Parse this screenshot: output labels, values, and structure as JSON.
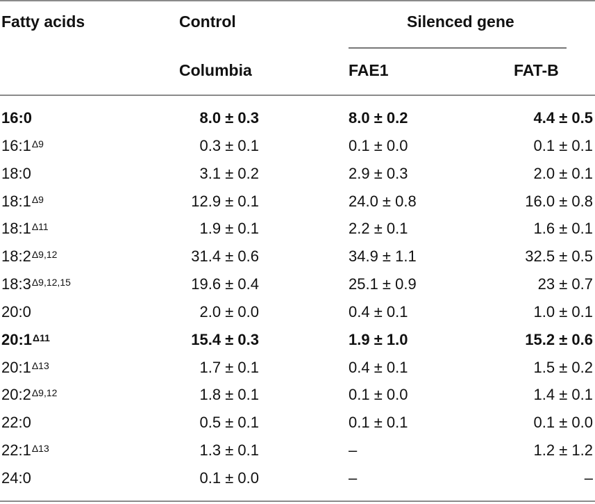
{
  "table": {
    "headers": {
      "fatty_acids": "Fatty acids",
      "control": "Control",
      "silenced": "Silenced gene",
      "columbia": "Columbia",
      "fae1": "FAE1",
      "fatb": "FAT-B"
    },
    "rows": [
      {
        "base": "16:0",
        "sup": "",
        "columbia": "8.0 ± 0.3",
        "fae1": "8.0 ± 0.2",
        "fatb": "4.4 ± 0.5",
        "bold": true
      },
      {
        "base": "16:1",
        "sup": "Δ9",
        "columbia": "0.3 ± 0.1",
        "fae1": "0.1 ± 0.0",
        "fatb": "0.1 ± 0.1",
        "bold": false
      },
      {
        "base": "18:0",
        "sup": "",
        "columbia": "3.1 ± 0.2",
        "fae1": "2.9 ± 0.3",
        "fatb": "2.0 ± 0.1",
        "bold": false
      },
      {
        "base": "18:1",
        "sup": "Δ9",
        "columbia": "12.9 ± 0.1",
        "fae1": "24.0 ± 0.8",
        "fatb": "16.0 ± 0.8",
        "bold": false
      },
      {
        "base": "18:1",
        "sup": "Δ11",
        "columbia": "1.9 ± 0.1",
        "fae1": "2.2 ± 0.1",
        "fatb": "1.6 ± 0.1",
        "bold": false
      },
      {
        "base": "18:2",
        "sup": "Δ9,12",
        "columbia": "31.4 ± 0.6",
        "fae1": "34.9 ± 1.1",
        "fatb": "32.5 ± 0.5",
        "bold": false
      },
      {
        "base": "18:3",
        "sup": "Δ9,12,15",
        "columbia": "19.6 ± 0.4",
        "fae1": "25.1 ± 0.9",
        "fatb": "23 ± 0.7",
        "bold": false
      },
      {
        "base": "20:0",
        "sup": "",
        "columbia": "2.0 ± 0.0",
        "fae1": "0.4 ± 0.1",
        "fatb": "1.0 ± 0.1",
        "bold": false
      },
      {
        "base": "20:1",
        "sup": "Δ11",
        "columbia": "15.4 ± 0.3",
        "fae1": "1.9 ± 1.0",
        "fatb": "15.2 ± 0.6",
        "bold": true
      },
      {
        "base": "20:1",
        "sup": "Δ13",
        "columbia": "1.7 ± 0.1",
        "fae1": "0.4 ± 0.1",
        "fatb": "1.5 ± 0.2",
        "bold": false
      },
      {
        "base": "20:2",
        "sup": "Δ9,12",
        "columbia": "1.8 ± 0.1",
        "fae1": "0.1 ± 0.0",
        "fatb": "1.4 ± 0.1",
        "bold": false
      },
      {
        "base": "22:0",
        "sup": "",
        "columbia": "0.5 ± 0.1",
        "fae1": "0.1 ± 0.1",
        "fatb": "0.1 ± 0.0",
        "bold": false
      },
      {
        "base": "22:1",
        "sup": "Δ13",
        "columbia": "1.3 ± 0.1",
        "fae1": "–",
        "fatb": "1.2 ± 1.2",
        "bold": false
      },
      {
        "base": "24:0",
        "sup": "",
        "columbia": "0.1 ± 0.0",
        "fae1": "–",
        "fatb": "–",
        "bold": false
      }
    ]
  }
}
